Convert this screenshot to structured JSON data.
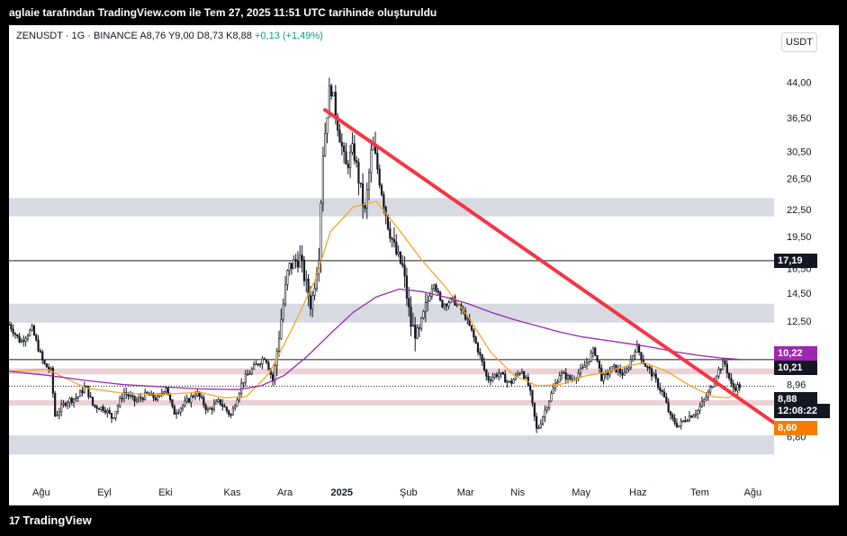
{
  "header": {
    "attribution": "aglaie tarafından TradingView.com ile Tem 27, 2025 11:51 UTC tarihinde oluşturuldu"
  },
  "legend": {
    "symbol": "ZENUSDT · 1G · BINANCE",
    "open": "A8,76",
    "high": "Y9,00",
    "low": "D8,73",
    "close": "K8,88",
    "change": "+0,13 (+1,49%)"
  },
  "currency": "USDT",
  "footer": {
    "brand": "TradingView"
  },
  "colors": {
    "trendline": "#f23645",
    "ma_fast": "#f5a623",
    "ma_slow": "#9c27b0",
    "zone": "#d1d4dc",
    "zone_pink": "#e8c9cf",
    "candle": "#131722",
    "badge_dark": "#131722",
    "badge_purple": "#9c27b0",
    "badge_orange": "#f57c00"
  },
  "chart_data": {
    "type": "candlestick",
    "scale": "log",
    "x_labels": [
      "Ağu",
      "Eyl",
      "Eki",
      "Kas",
      "Ara",
      "2025",
      "Şub",
      "Mar",
      "Nis",
      "May",
      "Haz",
      "Tem",
      "Ağu"
    ],
    "y_ticks": [
      "44,00",
      "36,50",
      "30,50",
      "26,50",
      "22,50",
      "19,50",
      "16,50",
      "14,50",
      "12,50",
      "8,96",
      "6,80"
    ],
    "y_tick_values": [
      44.0,
      36.5,
      30.5,
      26.5,
      22.5,
      19.5,
      16.5,
      14.5,
      12.5,
      8.96,
      6.8
    ],
    "ylim": [
      5.7,
      52
    ],
    "price_labels": [
      {
        "label": "17,19",
        "value": 17.19,
        "style": "dark"
      },
      {
        "label": "10,22",
        "value": 10.22,
        "style": "purple"
      },
      {
        "label": "10,21",
        "value": 10.21,
        "style": "dark"
      },
      {
        "label": "8,88",
        "value": 8.88,
        "style": "dark"
      },
      {
        "label": "12:08:22",
        "value": 8.6,
        "style": "dark_time"
      },
      {
        "label": "8,60",
        "value": 8.6,
        "style": "orange"
      }
    ],
    "horizontal_lines": [
      {
        "value": 17.19,
        "style": "solid"
      },
      {
        "value": 10.21,
        "style": "solid"
      },
      {
        "value": 8.88,
        "style": "dotted"
      }
    ],
    "zones": [
      {
        "low": 21.7,
        "high": 23.9,
        "color": "gray"
      },
      {
        "low": 12.4,
        "high": 13.7,
        "color": "gray"
      },
      {
        "low": 9.45,
        "high": 9.75,
        "color": "pink"
      },
      {
        "low": 8.02,
        "high": 8.25,
        "color": "pink"
      },
      {
        "low": 6.2,
        "high": 6.85,
        "color": "gray"
      }
    ],
    "trendline": {
      "from": {
        "t": 0.413,
        "value": 38.0
      },
      "to": {
        "t": 1.0,
        "value": 7.2
      }
    },
    "series": [
      {
        "name": "",
        "kind": "ma_fast",
        "points": [
          [
            0,
            9.6
          ],
          [
            0.05,
            9.7
          ],
          [
            0.1,
            8.8
          ],
          [
            0.15,
            8.55
          ],
          [
            0.2,
            8.5
          ],
          [
            0.25,
            8.6
          ],
          [
            0.28,
            8.35
          ],
          [
            0.31,
            8.4
          ],
          [
            0.34,
            9.5
          ],
          [
            0.37,
            12.0
          ],
          [
            0.4,
            15.5
          ],
          [
            0.42,
            20.0
          ],
          [
            0.45,
            22.8
          ],
          [
            0.48,
            23.5
          ],
          [
            0.51,
            20.2
          ],
          [
            0.54,
            17.2
          ],
          [
            0.57,
            15.0
          ],
          [
            0.6,
            12.8
          ],
          [
            0.63,
            10.6
          ],
          [
            0.66,
            9.4
          ],
          [
            0.69,
            8.9
          ],
          [
            0.72,
            8.95
          ],
          [
            0.75,
            9.35
          ],
          [
            0.78,
            9.55
          ],
          [
            0.8,
            9.8
          ],
          [
            0.83,
            10.05
          ],
          [
            0.86,
            9.6
          ],
          [
            0.89,
            8.9
          ],
          [
            0.92,
            8.4
          ],
          [
            0.94,
            8.35
          ],
          [
            0.955,
            8.6
          ]
        ]
      },
      {
        "name": "",
        "kind": "ma_slow",
        "points": [
          [
            0,
            9.6
          ],
          [
            0.05,
            9.4
          ],
          [
            0.1,
            9.15
          ],
          [
            0.15,
            8.95
          ],
          [
            0.2,
            8.85
          ],
          [
            0.25,
            8.75
          ],
          [
            0.3,
            8.72
          ],
          [
            0.33,
            8.9
          ],
          [
            0.36,
            9.4
          ],
          [
            0.39,
            10.4
          ],
          [
            0.42,
            11.7
          ],
          [
            0.45,
            13.1
          ],
          [
            0.48,
            14.2
          ],
          [
            0.51,
            14.8
          ],
          [
            0.54,
            14.6
          ],
          [
            0.57,
            14.2
          ],
          [
            0.6,
            13.7
          ],
          [
            0.63,
            13.1
          ],
          [
            0.66,
            12.6
          ],
          [
            0.69,
            12.2
          ],
          [
            0.72,
            11.8
          ],
          [
            0.75,
            11.5
          ],
          [
            0.78,
            11.3
          ],
          [
            0.81,
            11.1
          ],
          [
            0.84,
            10.9
          ],
          [
            0.87,
            10.65
          ],
          [
            0.9,
            10.45
          ],
          [
            0.93,
            10.3
          ],
          [
            0.955,
            10.22
          ]
        ]
      }
    ],
    "candle_path": [
      [
        0,
        12.3
      ],
      [
        0.015,
        11.2
      ],
      [
        0.03,
        12.0
      ],
      [
        0.045,
        10.0
      ],
      [
        0.055,
        9.6
      ],
      [
        0.06,
        7.6
      ],
      [
        0.075,
        8.2
      ],
      [
        0.09,
        8.4
      ],
      [
        0.1,
        8.9
      ],
      [
        0.11,
        8.0
      ],
      [
        0.125,
        7.9
      ],
      [
        0.135,
        7.5
      ],
      [
        0.15,
        8.6
      ],
      [
        0.165,
        8.2
      ],
      [
        0.18,
        8.5
      ],
      [
        0.195,
        8.3
      ],
      [
        0.205,
        8.9
      ],
      [
        0.215,
        7.7
      ],
      [
        0.23,
        8.1
      ],
      [
        0.245,
        8.6
      ],
      [
        0.26,
        7.8
      ],
      [
        0.275,
        8.2
      ],
      [
        0.29,
        7.6
      ],
      [
        0.305,
        9.1
      ],
      [
        0.32,
        9.8
      ],
      [
        0.335,
        10.4
      ],
      [
        0.345,
        9.1
      ],
      [
        0.355,
        12.4
      ],
      [
        0.365,
        16.5
      ],
      [
        0.38,
        17.5
      ],
      [
        0.395,
        13.5
      ],
      [
        0.405,
        18.0
      ],
      [
        0.41,
        30.0
      ],
      [
        0.42,
        44.0
      ],
      [
        0.43,
        35.0
      ],
      [
        0.44,
        28.0
      ],
      [
        0.45,
        31.0
      ],
      [
        0.465,
        22.0
      ],
      [
        0.475,
        32.0
      ],
      [
        0.485,
        26.0
      ],
      [
        0.495,
        21.0
      ],
      [
        0.505,
        18.0
      ],
      [
        0.515,
        16.5
      ],
      [
        0.525,
        12.3
      ],
      [
        0.535,
        11.5
      ],
      [
        0.545,
        13.5
      ],
      [
        0.555,
        15.5
      ],
      [
        0.565,
        13.6
      ],
      [
        0.58,
        14.0
      ],
      [
        0.595,
        13.0
      ],
      [
        0.605,
        11.8
      ],
      [
        0.615,
        10.5
      ],
      [
        0.625,
        9.2
      ],
      [
        0.64,
        9.5
      ],
      [
        0.655,
        9.0
      ],
      [
        0.67,
        9.7
      ],
      [
        0.68,
        8.8
      ],
      [
        0.69,
        7.0
      ],
      [
        0.705,
        8.2
      ],
      [
        0.72,
        9.5
      ],
      [
        0.735,
        9.2
      ],
      [
        0.75,
        9.7
      ],
      [
        0.765,
        10.8
      ],
      [
        0.775,
        9.2
      ],
      [
        0.79,
        9.8
      ],
      [
        0.805,
        9.4
      ],
      [
        0.82,
        11.0
      ],
      [
        0.83,
        10.0
      ],
      [
        0.84,
        9.5
      ],
      [
        0.855,
        8.5
      ],
      [
        0.865,
        7.5
      ],
      [
        0.875,
        7.2
      ],
      [
        0.885,
        7.5
      ],
      [
        0.9,
        7.8
      ],
      [
        0.915,
        8.6
      ],
      [
        0.925,
        9.5
      ],
      [
        0.935,
        10.1
      ],
      [
        0.945,
        8.8
      ],
      [
        0.955,
        8.88
      ]
    ]
  }
}
